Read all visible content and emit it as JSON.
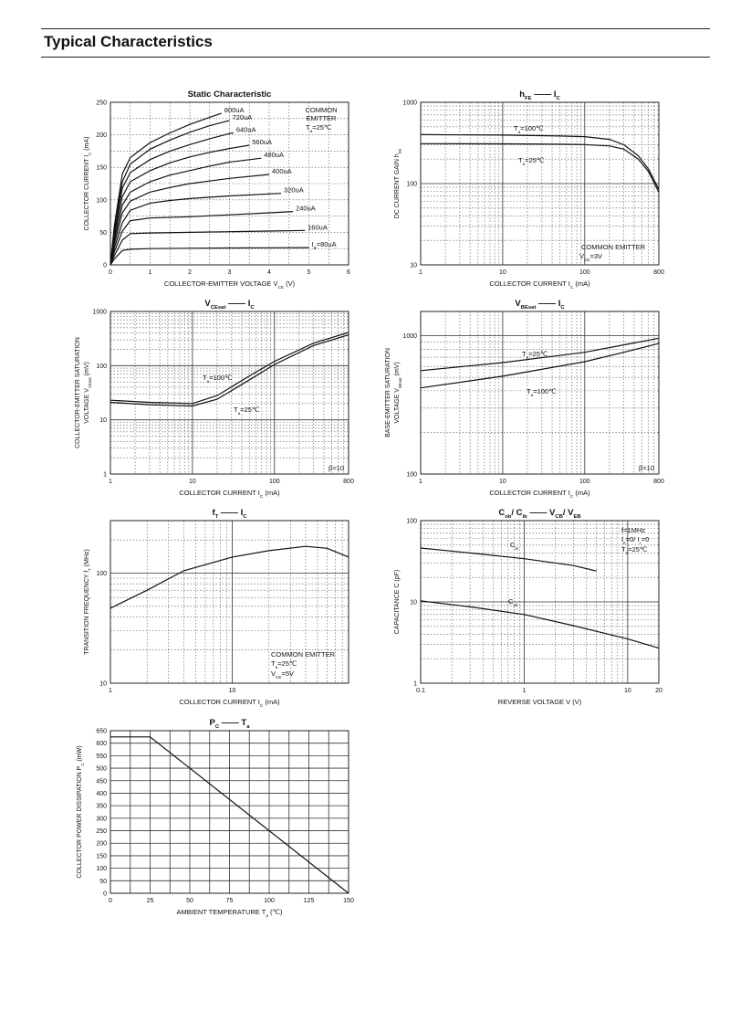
{
  "page": {
    "title": "Typical Characteristics"
  },
  "chart_data": [
    {
      "id": "static",
      "type": "line",
      "title": "Static Characteristic",
      "xlabel": "COLLECTOR-EMITTER VOLTAGE",
      "xlabel_sym": "V",
      "xlabel_sub": "CE",
      "xlabel_unit": "(V)",
      "ylabel": "COLLECTOR CURRENT",
      "ylabel_sym": "I",
      "ylabel_sub": "C",
      "ylabel_unit": "(mA)",
      "xlim": [
        0,
        6
      ],
      "ylim": [
        0,
        250
      ],
      "xticks": [
        0,
        1,
        2,
        3,
        4,
        5,
        6
      ],
      "yticks": [
        0,
        50,
        100,
        150,
        200,
        250
      ],
      "annotation": [
        "COMMON",
        "EMITTER",
        "T",
        "a",
        "=25℃"
      ],
      "series": [
        {
          "label": "800uA",
          "points": [
            [
              0,
              0
            ],
            [
              0.1,
              60
            ],
            [
              0.3,
              140
            ],
            [
              0.5,
              165
            ],
            [
              1,
              188
            ],
            [
              1.5,
              203
            ],
            [
              2,
              216
            ],
            [
              2.5,
              227
            ],
            [
              2.8,
              233
            ]
          ]
        },
        {
          "label": "720uA",
          "points": [
            [
              0,
              0
            ],
            [
              0.1,
              55
            ],
            [
              0.3,
              128
            ],
            [
              0.5,
              155
            ],
            [
              1,
              178
            ],
            [
              1.5,
              192
            ],
            [
              2,
              204
            ],
            [
              2.5,
              214
            ],
            [
              3,
              222
            ]
          ]
        },
        {
          "label": "640uA",
          "points": [
            [
              0,
              0
            ],
            [
              0.1,
              50
            ],
            [
              0.3,
              118
            ],
            [
              0.5,
              142
            ],
            [
              1,
              162
            ],
            [
              1.5,
              175
            ],
            [
              2,
              185
            ],
            [
              2.5,
              194
            ],
            [
              3,
              202
            ],
            [
              3.1,
              203
            ]
          ]
        },
        {
          "label": "560uA",
          "points": [
            [
              0,
              0
            ],
            [
              0.1,
              44
            ],
            [
              0.3,
              105
            ],
            [
              0.5,
              128
            ],
            [
              1,
              145
            ],
            [
              1.5,
              157
            ],
            [
              2,
              166
            ],
            [
              2.5,
              173
            ],
            [
              3,
              179
            ],
            [
              3.5,
              184
            ]
          ]
        },
        {
          "label": "480uA",
          "points": [
            [
              0,
              0
            ],
            [
              0.1,
              38
            ],
            [
              0.3,
              92
            ],
            [
              0.5,
              112
            ],
            [
              1,
              128
            ],
            [
              1.5,
              138
            ],
            [
              2,
              145
            ],
            [
              2.5,
              152
            ],
            [
              3,
              158
            ],
            [
              3.8,
              164
            ]
          ]
        },
        {
          "label": "400uA",
          "points": [
            [
              0,
              0
            ],
            [
              0.1,
              32
            ],
            [
              0.3,
              80
            ],
            [
              0.5,
              98
            ],
            [
              1,
              112
            ],
            [
              1.5,
              119
            ],
            [
              2,
              125
            ],
            [
              2.5,
              129
            ],
            [
              3,
              133
            ],
            [
              4,
              139
            ]
          ]
        },
        {
          "label": "320uA",
          "points": [
            [
              0,
              0
            ],
            [
              0.1,
              26
            ],
            [
              0.3,
              65
            ],
            [
              0.5,
              84
            ],
            [
              1,
              95
            ],
            [
              1.5,
              99
            ],
            [
              2,
              102
            ],
            [
              3,
              106
            ],
            [
              4.3,
              110
            ]
          ]
        },
        {
          "label": "240uA",
          "points": [
            [
              0,
              0
            ],
            [
              0.1,
              20
            ],
            [
              0.3,
              52
            ],
            [
              0.5,
              68
            ],
            [
              1,
              72
            ],
            [
              2,
              74
            ],
            [
              3,
              77
            ],
            [
              4,
              80
            ],
            [
              4.6,
              82
            ]
          ]
        },
        {
          "label": "160uA",
          "points": [
            [
              0,
              0
            ],
            [
              0.1,
              14
            ],
            [
              0.3,
              38
            ],
            [
              0.5,
              48
            ],
            [
              1,
              49
            ],
            [
              2,
              50
            ],
            [
              3,
              51
            ],
            [
              4,
              52
            ],
            [
              4.9,
              53
            ]
          ]
        },
        {
          "label": "I",
          "label_sub": "B",
          "label_rest": "=80uA",
          "points": [
            [
              0,
              0
            ],
            [
              0.1,
              9
            ],
            [
              0.3,
              22
            ],
            [
              0.5,
              24
            ],
            [
              1,
              25
            ],
            [
              2,
              25.5
            ],
            [
              3,
              26
            ],
            [
              4,
              26.3
            ],
            [
              5,
              26.5
            ]
          ]
        }
      ]
    },
    {
      "id": "hfe",
      "type": "line",
      "title_main": "h",
      "title_sub": "FE",
      "title_vs": "I",
      "title_vs_sub": "C",
      "xlabel": "COLLECTOR CURRENT",
      "xlabel_sym": "I",
      "xlabel_sub": "C",
      "xlabel_unit": "(mA)",
      "ylabel": "DC CURRENT GAIN",
      "ylabel_sym": "h",
      "ylabel_sub": "FE",
      "xscale": "log",
      "yscale": "log",
      "xlim": [
        1,
        800
      ],
      "ylim": [
        10,
        1000
      ],
      "xticks": [
        1,
        10,
        100,
        800
      ],
      "yticks": [
        10,
        100,
        1000
      ],
      "annotation": [
        "COMMON EMITTER",
        "V",
        "CE",
        "=3V"
      ],
      "series": [
        {
          "label": "T",
          "label_sub": "a",
          "label_rest": "=100℃",
          "points": [
            [
              1,
              400
            ],
            [
              10,
              395
            ],
            [
              50,
              385
            ],
            [
              100,
              378
            ],
            [
              200,
              350
            ],
            [
              300,
              300
            ],
            [
              450,
              220
            ],
            [
              600,
              150
            ],
            [
              800,
              85
            ]
          ]
        },
        {
          "label": "T",
          "label_sub": "a",
          "label_rest": "=25℃",
          "points": [
            [
              1,
              310
            ],
            [
              10,
              308
            ],
            [
              50,
              305
            ],
            [
              100,
              302
            ],
            [
              200,
              290
            ],
            [
              300,
              265
            ],
            [
              450,
              200
            ],
            [
              600,
              140
            ],
            [
              800,
              78
            ]
          ]
        }
      ]
    },
    {
      "id": "vcesat",
      "type": "line",
      "title_main": "V",
      "title_sub": "CEsat",
      "title_vs": "I",
      "title_vs_sub": "C",
      "xlabel": "COLLECTOR CURRENT",
      "xlabel_sym": "I",
      "xlabel_sub": "C",
      "xlabel_unit": "(mA)",
      "ylabel": "COLLECTOR-EMITTER SATURATION",
      "ylabel2": "VOLTAGE",
      "ylabel_sym": "V",
      "ylabel_sub": "CEsat",
      "ylabel_unit": "(mV)",
      "xscale": "log",
      "yscale": "log",
      "xlim": [
        1,
        800
      ],
      "ylim": [
        1,
        1000
      ],
      "xticks": [
        1,
        10,
        100,
        800
      ],
      "yticks": [
        1,
        10,
        100,
        1000
      ],
      "annotation": [
        "β=10"
      ],
      "series": [
        {
          "label": "T",
          "label_sub": "a",
          "label_rest": "=100℃",
          "points": [
            [
              1,
              23
            ],
            [
              3,
              21
            ],
            [
              10,
              20
            ],
            [
              20,
              28
            ],
            [
              50,
              65
            ],
            [
              100,
              120
            ],
            [
              300,
              260
            ],
            [
              800,
              410
            ]
          ]
        },
        {
          "label": "T",
          "label_sub": "a",
          "label_rest": "=25℃",
          "points": [
            [
              1,
              21
            ],
            [
              3,
              19
            ],
            [
              10,
              18
            ],
            [
              20,
              24
            ],
            [
              50,
              55
            ],
            [
              100,
              105
            ],
            [
              300,
              235
            ],
            [
              800,
              370
            ]
          ]
        }
      ]
    },
    {
      "id": "vbesat",
      "type": "line",
      "title_main": "V",
      "title_sub": "BEsat",
      "title_vs": "I",
      "title_vs_sub": "C",
      "xlabel": "COLLECTOR CURRENT",
      "xlabel_sym": "I",
      "xlabel_sub": "C",
      "xlabel_unit": "(mA)",
      "ylabel": "BASE-EMITTER SATURATION",
      "ylabel2": "VOLTAGE",
      "ylabel_sym": "V",
      "ylabel_sub": "BEsat",
      "ylabel_unit": "(mV)",
      "xscale": "log",
      "yscale": "log",
      "xlim": [
        1,
        800
      ],
      "ylim": [
        100,
        1500
      ],
      "xticks": [
        1,
        10,
        100,
        800
      ],
      "yticks": [
        100,
        1000
      ],
      "annotation": [
        "β=10"
      ],
      "series": [
        {
          "label": "T",
          "label_sub": "a",
          "label_rest": "=25℃",
          "points": [
            [
              1,
              560
            ],
            [
              10,
              640
            ],
            [
              100,
              760
            ],
            [
              300,
              860
            ],
            [
              800,
              960
            ]
          ]
        },
        {
          "label": "T",
          "label_sub": "a",
          "label_rest": "=100℃",
          "points": [
            [
              1,
              420
            ],
            [
              10,
              510
            ],
            [
              100,
              650
            ],
            [
              300,
              760
            ],
            [
              800,
              880
            ]
          ]
        }
      ]
    },
    {
      "id": "ft",
      "type": "line",
      "title_main": "f",
      "title_sub": "T",
      "title_vs": "I",
      "title_vs_sub": "C",
      "xlabel": "COLLECTOR CURRENT",
      "xlabel_sym": "I",
      "xlabel_sub": "C",
      "xlabel_unit": "(mA)",
      "ylabel": "TRANSITION FREQUENCY",
      "ylabel_sym": "f",
      "ylabel_sub": "T",
      "ylabel_unit": "(MHz)",
      "xscale": "log",
      "yscale": "log",
      "xlim": [
        1,
        90
      ],
      "ylim": [
        10,
        300
      ],
      "xticks": [
        1,
        10
      ],
      "yticks": [
        10,
        100
      ],
      "annotation": [
        "COMMON EMITTER",
        "T",
        "a",
        "=25℃",
        "V",
        "CE",
        "=5V"
      ],
      "series": [
        {
          "label": "",
          "points": [
            [
              1,
              48
            ],
            [
              2,
              70
            ],
            [
              4,
              105
            ],
            [
              10,
              140
            ],
            [
              20,
              160
            ],
            [
              40,
              175
            ],
            [
              60,
              168
            ],
            [
              90,
              140
            ]
          ]
        }
      ]
    },
    {
      "id": "cap",
      "type": "line",
      "title_main": "C",
      "title_sub": "ob",
      "title_sep": "/ C",
      "title_sub2": "ib",
      "title_vs": "V",
      "title_vs_sub": "CB",
      "title_vs_sep": "/ V",
      "title_vs_sub2": "EB",
      "xlabel": "REVERSE VOLTAGE",
      "xlabel_sym": "V",
      "xlabel_unit": "(V)",
      "ylabel": "CAPACITANCE",
      "ylabel_sym": "C",
      "ylabel_unit": "(pF)",
      "xscale": "log",
      "yscale": "log",
      "xlim": [
        0.1,
        20
      ],
      "ylim": [
        1,
        100
      ],
      "xticks": [
        0.1,
        1,
        10,
        20
      ],
      "yticks": [
        1,
        10,
        100
      ],
      "annotation": [
        "f=1MHz",
        "I",
        "e",
        "=0/ I",
        "c",
        "=0",
        "T",
        "a",
        "=25℃"
      ],
      "series": [
        {
          "label": "C",
          "label_sub": "ib",
          "points": [
            [
              0.1,
              46
            ],
            [
              0.3,
              40
            ],
            [
              1,
              34
            ],
            [
              3,
              28
            ],
            [
              5,
              24
            ]
          ]
        },
        {
          "label": "C",
          "label_sub": "ob",
          "points": [
            [
              0.1,
              10.3
            ],
            [
              0.3,
              8.7
            ],
            [
              1,
              7
            ],
            [
              3,
              5.1
            ],
            [
              10,
              3.5
            ],
            [
              20,
              2.7
            ]
          ]
        }
      ]
    },
    {
      "id": "pc",
      "type": "line",
      "title_main": "P",
      "title_sub": "C",
      "title_vs": "T",
      "title_vs_sub": "a",
      "xlabel": "AMBIENT TEMPERATURE",
      "xlabel_sym": "T",
      "xlabel_sub": "a",
      "xlabel_unit": "(℃)",
      "ylabel": "COLLECTOR POWER DISSIPATION",
      "ylabel_sym": "P",
      "ylabel_sub": "C",
      "ylabel_unit": "(mW)",
      "xlim": [
        0,
        150
      ],
      "ylim": [
        0,
        650
      ],
      "xticks": [
        0,
        25,
        50,
        75,
        100,
        125,
        150
      ],
      "yticks": [
        0,
        50,
        100,
        150,
        200,
        250,
        300,
        350,
        400,
        450,
        500,
        550,
        600,
        650
      ],
      "series": [
        {
          "label": "",
          "points": [
            [
              0,
              625
            ],
            [
              25,
              625
            ],
            [
              150,
              0
            ]
          ]
        }
      ]
    }
  ]
}
